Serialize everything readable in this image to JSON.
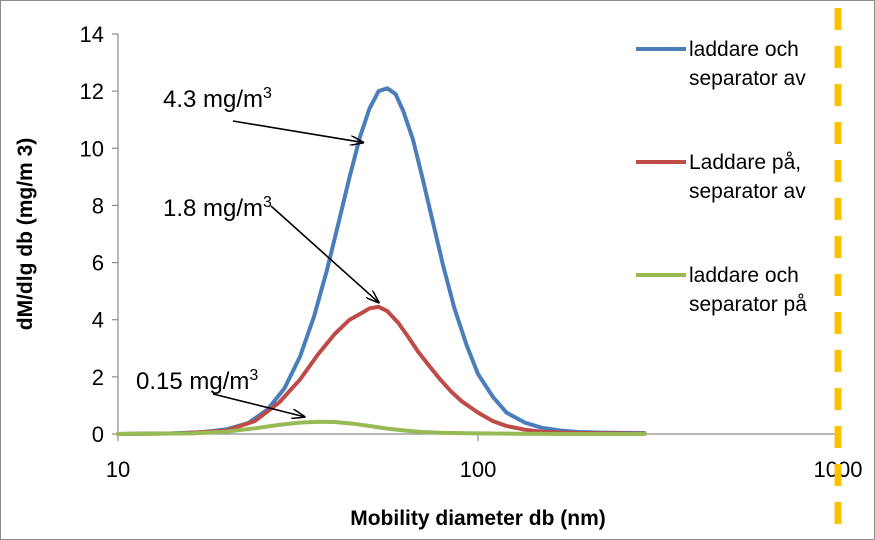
{
  "chart_data": {
    "type": "line",
    "xlabel": "Mobility diameter db (nm)",
    "ylabel": "dM/dlg db (mg/m 3)",
    "x_scale": "log",
    "xlim": [
      10,
      1000
    ],
    "ylim": [
      0,
      14
    ],
    "x_ticks": [
      "10",
      "100",
      "1000"
    ],
    "y_ticks": [
      "0",
      "2",
      "4",
      "6",
      "8",
      "10",
      "12",
      "14"
    ],
    "grid": false,
    "legend_position": "right",
    "series": [
      {
        "name": "laddare och separator av",
        "legend_lines": [
          "laddare och",
          "separator av"
        ],
        "color": "#4a7ebb",
        "x": [
          10,
          14,
          17,
          20,
          23,
          26,
          29,
          32,
          35,
          38,
          41,
          44,
          47,
          50,
          53,
          56,
          59,
          62,
          66,
          70,
          75,
          80,
          86,
          93,
          100,
          110,
          120,
          135,
          150,
          170,
          190,
          220,
          250,
          290
        ],
        "y": [
          0,
          0.02,
          0.06,
          0.16,
          0.38,
          0.85,
          1.6,
          2.7,
          4.1,
          5.7,
          7.4,
          9.0,
          10.4,
          11.4,
          12.0,
          12.1,
          11.9,
          11.3,
          10.3,
          9.0,
          7.4,
          5.9,
          4.4,
          3.1,
          2.1,
          1.3,
          0.75,
          0.4,
          0.22,
          0.12,
          0.07,
          0.05,
          0.04,
          0.03
        ]
      },
      {
        "name": "Laddare på, separator av",
        "legend_lines": [
          "Laddare på,",
          "separator av"
        ],
        "color": "#be4b48",
        "x": [
          10,
          15,
          20,
          24,
          28,
          32,
          36,
          40,
          44,
          47,
          50,
          53,
          56,
          60,
          64,
          68,
          72,
          78,
          84,
          90,
          100,
          110,
          120,
          135,
          150,
          170,
          200,
          240,
          290
        ],
        "y": [
          0,
          0.02,
          0.12,
          0.45,
          1.1,
          1.9,
          2.8,
          3.5,
          4.0,
          4.2,
          4.4,
          4.45,
          4.3,
          3.9,
          3.4,
          2.9,
          2.5,
          1.95,
          1.5,
          1.15,
          0.75,
          0.45,
          0.28,
          0.15,
          0.08,
          0.05,
          0.03,
          0.02,
          0.01
        ]
      },
      {
        "name": "laddare och separator på",
        "legend_lines": [
          "laddare och",
          "separator på"
        ],
        "color": "#98b954",
        "x": [
          10,
          16,
          20,
          24,
          28,
          32,
          36,
          40,
          45,
          50,
          56,
          63,
          70,
          80,
          100,
          130,
          170,
          220,
          290
        ],
        "y": [
          0,
          0.02,
          0.08,
          0.2,
          0.32,
          0.4,
          0.43,
          0.42,
          0.36,
          0.28,
          0.19,
          0.12,
          0.07,
          0.04,
          0.02,
          0.01,
          0.0,
          0.0,
          0.0
        ]
      }
    ],
    "annotations": [
      {
        "text": "4.3 mg/m",
        "sup": "3",
        "points_to": {
          "series": 0,
          "x": 48,
          "y": 10.2
        }
      },
      {
        "text": "1.8 mg/m",
        "sup": "3",
        "points_to": {
          "series": 1,
          "x": 53,
          "y": 4.6
        }
      },
      {
        "text": "0.15 mg/m",
        "sup": "3",
        "points_to": {
          "series": 2,
          "x": 33,
          "y": 0.6
        }
      }
    ],
    "reference_line": {
      "x": 1000,
      "style": "dashed",
      "color": "#ffc000"
    }
  }
}
